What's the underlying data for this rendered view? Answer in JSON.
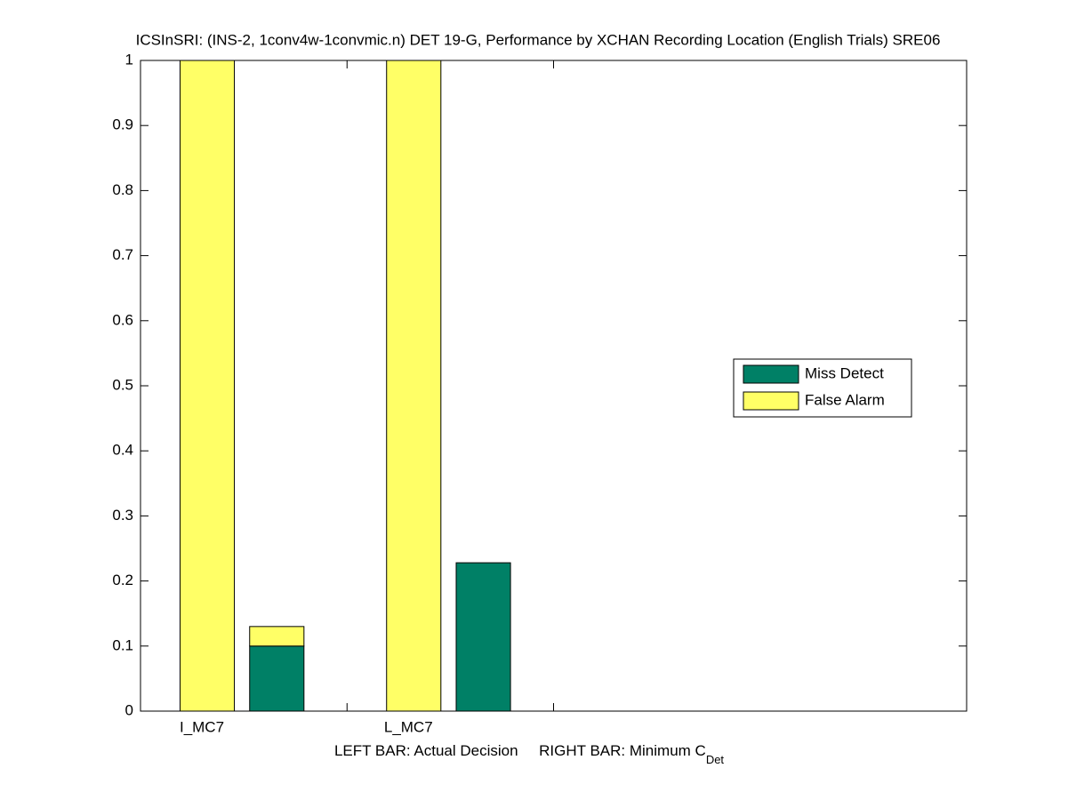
{
  "chart_data": {
    "type": "bar",
    "stacked": true,
    "title": "ICSInSRI: (INS-2, 1conv4w-1convmic.n) DET 19-G,  Performance by XCHAN Recording Location (English Trials) SRE06",
    "xlabel": "LEFT BAR: Actual Decision     RIGHT BAR: Minimum C",
    "xlabel_subscript": "Det",
    "categories": [
      "I_MC7",
      null,
      "L_MC7",
      null
    ],
    "series": [
      {
        "name": "Miss Detect",
        "color": "#008066",
        "values": [
          0,
          0.1,
          0,
          0.228
        ]
      },
      {
        "name": "False Alarm",
        "color": "#ffff66",
        "values": [
          1,
          0.03,
          1,
          0
        ]
      }
    ],
    "xlim": [
      0,
      4
    ],
    "xticks": [
      1,
      2
    ],
    "ylim": [
      0,
      1
    ],
    "yticks": [
      0,
      0.1,
      0.2,
      0.3,
      0.4,
      0.5,
      0.6,
      0.7,
      0.8,
      0.9,
      1
    ],
    "legend": "right"
  }
}
